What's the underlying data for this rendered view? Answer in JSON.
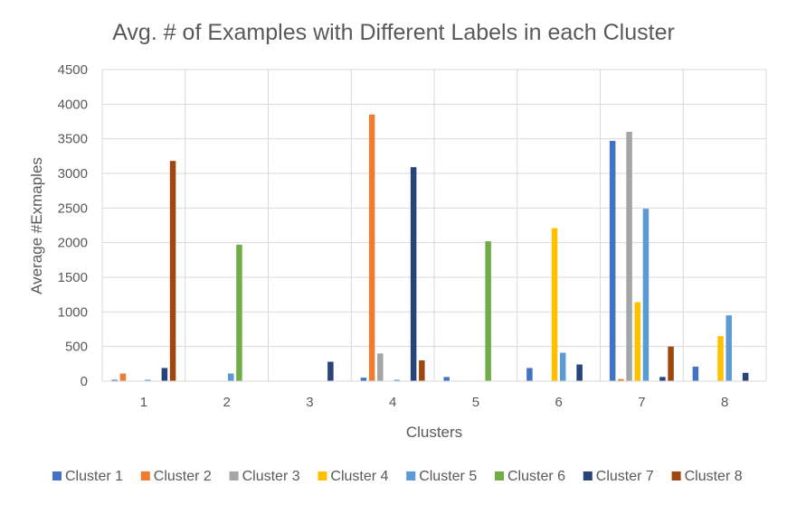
{
  "chart_data": {
    "type": "bar",
    "title": "Avg. # of Examples with Different Labels in each Cluster",
    "xlabel": "Clusters",
    "ylabel": "Average #Exmaples",
    "categories": [
      "1",
      "2",
      "3",
      "4",
      "5",
      "6",
      "7",
      "8"
    ],
    "ylim": [
      0,
      4500
    ],
    "yticks": [
      0,
      500,
      1000,
      1500,
      2000,
      2500,
      3000,
      3500,
      4000,
      4500
    ],
    "grid": true,
    "legend_position": "bottom",
    "series": [
      {
        "name": "Cluster 1",
        "color": "#4472C4",
        "values": [
          20,
          0,
          0,
          50,
          60,
          190,
          3470,
          210
        ]
      },
      {
        "name": "Cluster 2",
        "color": "#ED7D31",
        "values": [
          110,
          0,
          0,
          3850,
          0,
          0,
          30,
          0
        ]
      },
      {
        "name": "Cluster 3",
        "color": "#A5A5A5",
        "values": [
          0,
          0,
          0,
          400,
          0,
          0,
          3600,
          0
        ]
      },
      {
        "name": "Cluster 4",
        "color": "#FFC000",
        "values": [
          0,
          0,
          0,
          0,
          0,
          2210,
          1140,
          650
        ]
      },
      {
        "name": "Cluster 5",
        "color": "#5B9BD5",
        "values": [
          20,
          110,
          0,
          20,
          0,
          410,
          2490,
          950
        ]
      },
      {
        "name": "Cluster 6",
        "color": "#70AD47",
        "values": [
          0,
          1970,
          0,
          0,
          2020,
          0,
          0,
          0
        ]
      },
      {
        "name": "Cluster 7",
        "color": "#264478",
        "values": [
          190,
          0,
          280,
          3090,
          0,
          240,
          60,
          120
        ]
      },
      {
        "name": "Cluster 8",
        "color": "#9E480E",
        "values": [
          3180,
          0,
          0,
          300,
          0,
          0,
          500,
          0
        ]
      }
    ]
  }
}
